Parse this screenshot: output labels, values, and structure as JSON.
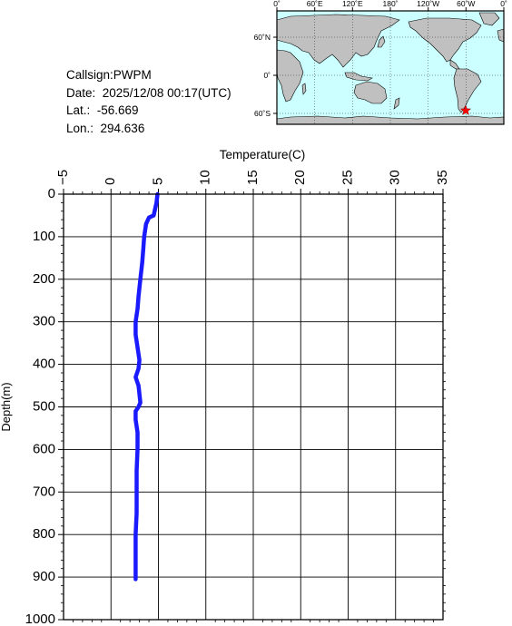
{
  "info": {
    "callsign": "Callsign:PWPM",
    "date": "Date:  2025/12/08 00:17(UTC)",
    "lat": "Lat.:  -56.669",
    "lon": "Lon.:  294.636"
  },
  "map": {
    "top_labels": [
      "0˚",
      "60˚E",
      "120˚E",
      "180˚",
      "120˚W",
      "60˚W",
      "0˚"
    ],
    "left_labels": [
      "60˚N",
      "0˚",
      "60˚S"
    ],
    "ocean_color": "#ccffff",
    "land_color": "#c0c0c0",
    "marker_color": "#ff0000",
    "marker_icon": "star-icon"
  },
  "chart_data": {
    "type": "line",
    "xlabel": "Temperature(C)",
    "ylabel": "Depth(m)",
    "xlim": [
      -5,
      35
    ],
    "ylim": [
      0,
      1000
    ],
    "y_inverted": true,
    "x_axis_position": "top",
    "x_ticks": [
      -5,
      0,
      5,
      10,
      15,
      20,
      25,
      30,
      35
    ],
    "y_ticks": [
      0,
      100,
      200,
      300,
      400,
      500,
      600,
      700,
      800,
      900,
      1000
    ],
    "grid": true,
    "line_color": "#1a1aff",
    "series": [
      {
        "x": [
          4.9,
          4.8,
          4.6,
          4.5,
          4.0,
          3.7,
          3.5,
          3.4,
          3.3,
          3.1,
          2.9,
          2.8,
          2.6,
          2.6,
          2.8,
          3.0,
          2.9,
          2.6,
          2.9,
          3.0,
          3.1,
          2.9,
          2.6,
          2.6,
          2.8,
          2.8,
          2.7,
          2.7,
          2.7,
          2.6,
          2.6,
          2.6
        ],
        "y": [
          0,
          20,
          40,
          50,
          55,
          70,
          100,
          130,
          160,
          200,
          240,
          270,
          300,
          330,
          360,
          390,
          410,
          430,
          450,
          470,
          490,
          500,
          510,
          530,
          560,
          600,
          650,
          700,
          750,
          800,
          850,
          905
        ]
      }
    ]
  }
}
